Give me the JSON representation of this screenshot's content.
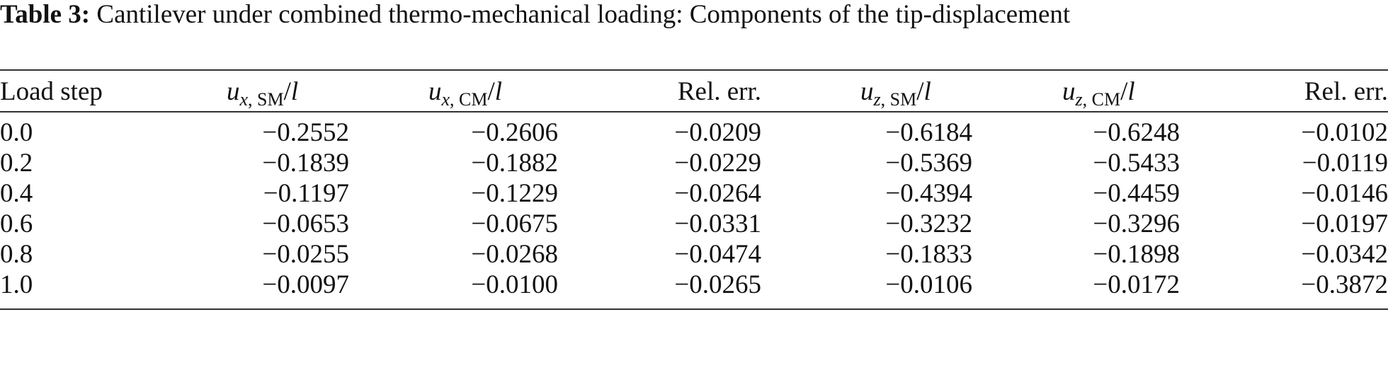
{
  "caption": {
    "label": "Table 3:",
    "text": "Cantilever under combined thermo-mechanical loading: Components of the tip-displacement"
  },
  "table": {
    "header": [
      {
        "text": "Load step"
      },
      {
        "main": "u",
        "sub_var": "x",
        "sub_sep": ", ",
        "sub_text": "SM",
        "slash": "/",
        "denom": "l"
      },
      {
        "main": "u",
        "sub_var": "x",
        "sub_sep": ", ",
        "sub_text": "CM",
        "slash": "/",
        "denom": "l"
      },
      {
        "text": "Rel. err."
      },
      {
        "main": "u",
        "sub_var": "z",
        "sub_sep": ", ",
        "sub_text": "SM",
        "slash": "/",
        "denom": "l"
      },
      {
        "main": "u",
        "sub_var": "z",
        "sub_sep": ", ",
        "sub_text": "CM",
        "slash": "/",
        "denom": "l"
      },
      {
        "text": "Rel. err."
      }
    ],
    "rows": [
      [
        "0.0",
        "−0.2552",
        "−0.2606",
        "−0.0209",
        "−0.6184",
        "−0.6248",
        "−0.0102"
      ],
      [
        "0.2",
        "−0.1839",
        "−0.1882",
        "−0.0229",
        "−0.5369",
        "−0.5433",
        "−0.0119"
      ],
      [
        "0.4",
        "−0.1197",
        "−0.1229",
        "−0.0264",
        "−0.4394",
        "−0.4459",
        "−0.0146"
      ],
      [
        "0.6",
        "−0.0653",
        "−0.0675",
        "−0.0331",
        "−0.3232",
        "−0.3296",
        "−0.0197"
      ],
      [
        "0.8",
        "−0.0255",
        "−0.0268",
        "−0.0474",
        "−0.1833",
        "−0.1898",
        "−0.0342"
      ],
      [
        "1.0",
        "−0.0097",
        "−0.0100",
        "−0.0265",
        "−0.0106",
        "−0.0172",
        "−0.3872"
      ]
    ]
  }
}
